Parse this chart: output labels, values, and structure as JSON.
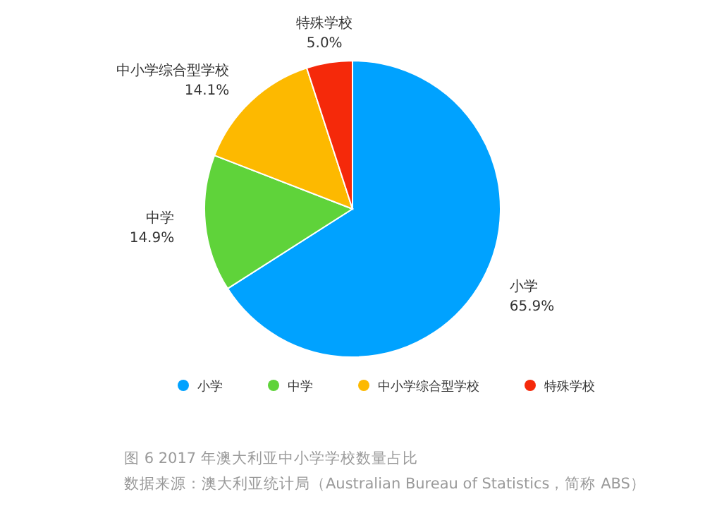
{
  "chart_data": {
    "type": "pie",
    "categories": [
      "小学",
      "中学",
      "中小学综合型学校",
      "特殊学校"
    ],
    "values": [
      65.9,
      14.9,
      14.1,
      5.0
    ],
    "value_labels": [
      "65.9%",
      "14.9%",
      "14.1%",
      "5.0%"
    ],
    "colors": [
      "#00a2ff",
      "#5fd33a",
      "#fdb900",
      "#f5290a"
    ],
    "legend": "bottom",
    "annotations": [
      "图 6 2017 年澳大利亚中小学学校数量占比",
      "数据来源：澳大利亚统计局（Australian Bureau of Statistics，简称 ABS）"
    ]
  }
}
